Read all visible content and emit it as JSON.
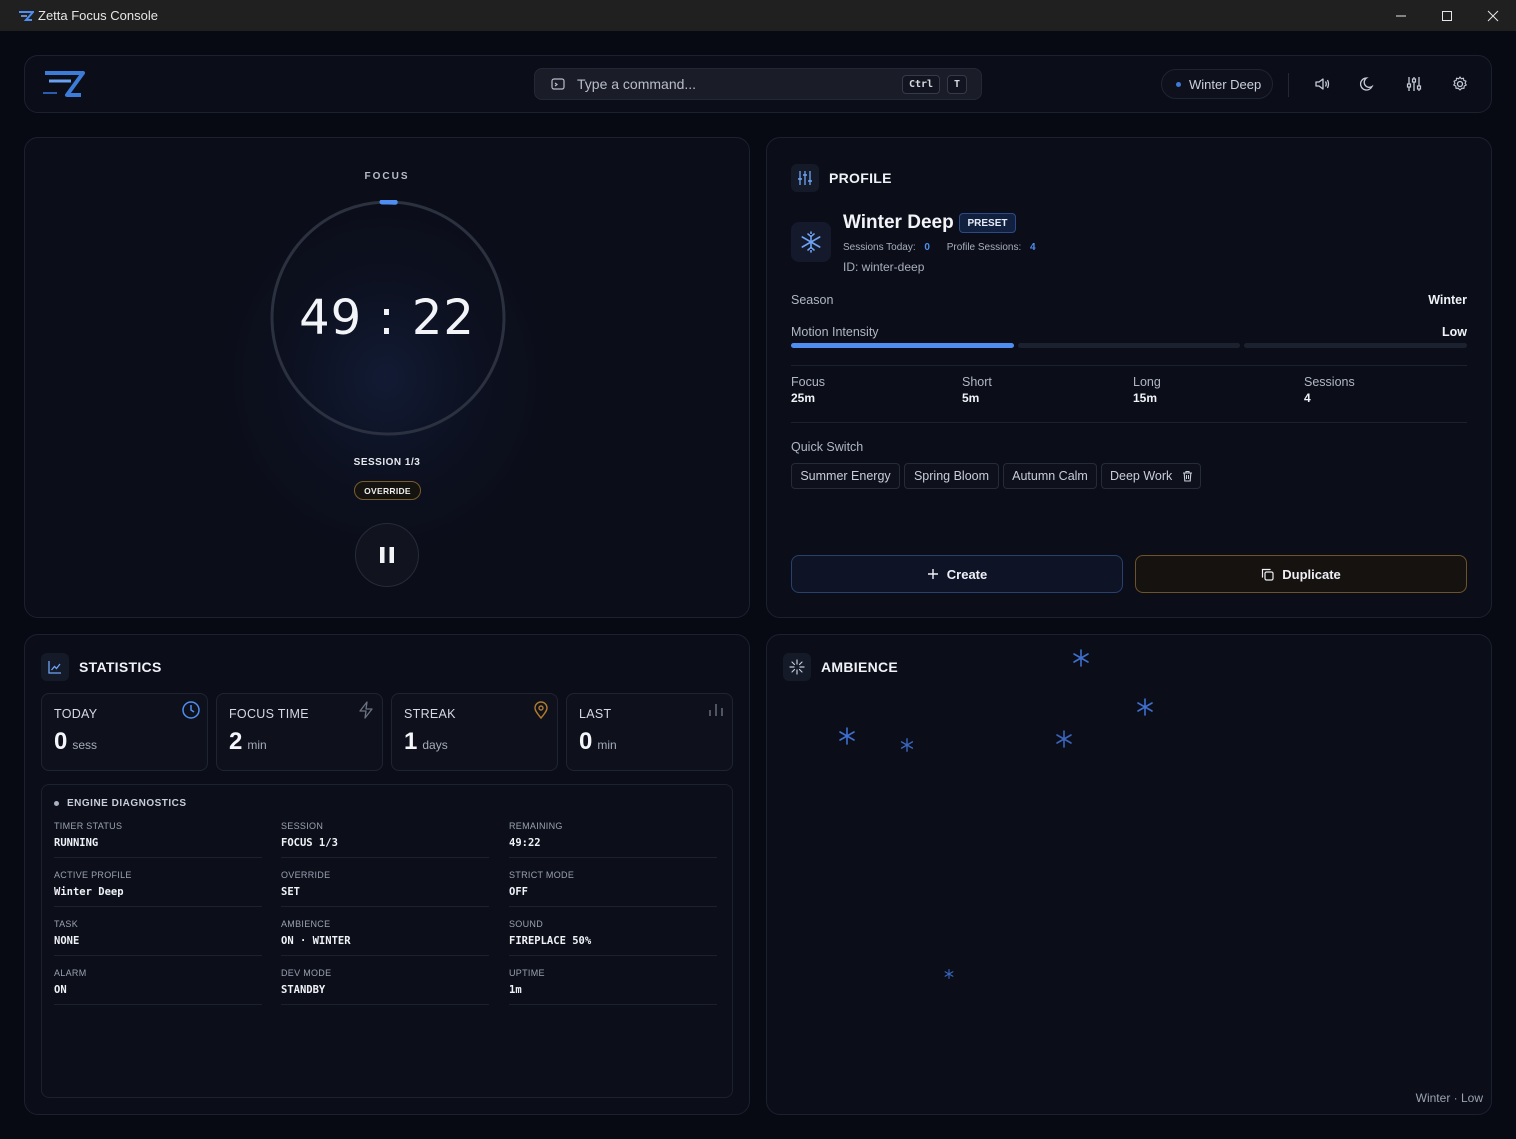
{
  "window": {
    "title": "Zetta Focus Console",
    "controls": [
      "minimize",
      "maximize",
      "close"
    ]
  },
  "topbar": {
    "command_placeholder": "Type a command...",
    "shortcut_keys": [
      "Ctrl",
      "T"
    ],
    "active_profile": "Winter Deep",
    "icons": [
      "volume-icon",
      "moon-icon",
      "sliders-icon",
      "gear-icon"
    ]
  },
  "timer": {
    "mode_label": "FOCUS",
    "time": "49:22",
    "session": "SESSION 1/3",
    "badge": "OVERRIDE",
    "progress_fraction": 0.01,
    "state": "running"
  },
  "profile": {
    "header": "PROFILE",
    "name": "Winter Deep",
    "tag": "PRESET",
    "sessions_today_label": "Sessions Today:",
    "sessions_today": "0",
    "profile_sessions_label": "Profile Sessions:",
    "profile_sessions": "4",
    "id": "ID: winter-deep",
    "season_label": "Season",
    "season": "Winter",
    "motion_label": "Motion Intensity",
    "motion": "Low",
    "motion_level": 1,
    "motion_levels": 3,
    "durations": [
      {
        "label": "Focus",
        "value": "25m"
      },
      {
        "label": "Short",
        "value": "5m"
      },
      {
        "label": "Long",
        "value": "15m"
      },
      {
        "label": "Sessions",
        "value": "4"
      }
    ],
    "quick_switch_label": "Quick Switch",
    "quick_switch": [
      "Summer Energy",
      "Spring Bloom",
      "Autumn Calm",
      "Deep Work"
    ],
    "create_label": "Create",
    "duplicate_label": "Duplicate"
  },
  "statistics": {
    "header": "STATISTICS",
    "cards": [
      {
        "label": "TODAY",
        "value": "0",
        "unit": "sess",
        "icon": "clock-icon"
      },
      {
        "label": "FOCUS TIME",
        "value": "2",
        "unit": "min",
        "icon": "lightning-icon"
      },
      {
        "label": "STREAK",
        "value": "1",
        "unit": "days",
        "icon": "location-pin-icon"
      },
      {
        "label": "LAST",
        "value": "0",
        "unit": "min",
        "icon": "bars-icon"
      }
    ],
    "diagnostics_title": "ENGINE DIAGNOSTICS",
    "diagnostics": [
      {
        "label": "TIMER STATUS",
        "value": "RUNNING"
      },
      {
        "label": "SESSION",
        "value": "FOCUS 1/3"
      },
      {
        "label": "REMAINING",
        "value": "49:22"
      },
      {
        "label": "ACTIVE PROFILE",
        "value": "Winter Deep"
      },
      {
        "label": "OVERRIDE",
        "value": "SET"
      },
      {
        "label": "STRICT MODE",
        "value": "OFF"
      },
      {
        "label": "TASK",
        "value": "NONE"
      },
      {
        "label": "AMBIENCE",
        "value": "ON · WINTER"
      },
      {
        "label": "SOUND",
        "value": "FIREPLACE 50%"
      },
      {
        "label": "ALARM",
        "value": "ON"
      },
      {
        "label": "DEV MODE",
        "value": "STANDBY"
      },
      {
        "label": "UPTIME",
        "value": "1m"
      }
    ]
  },
  "ambience": {
    "header": "AMBIENCE",
    "footer": "Winter · Low"
  },
  "colors": {
    "accent": "#4f8ef0",
    "background": "#080a13",
    "panel": "#0b0e19",
    "warning_border": "#7a5e2a"
  }
}
